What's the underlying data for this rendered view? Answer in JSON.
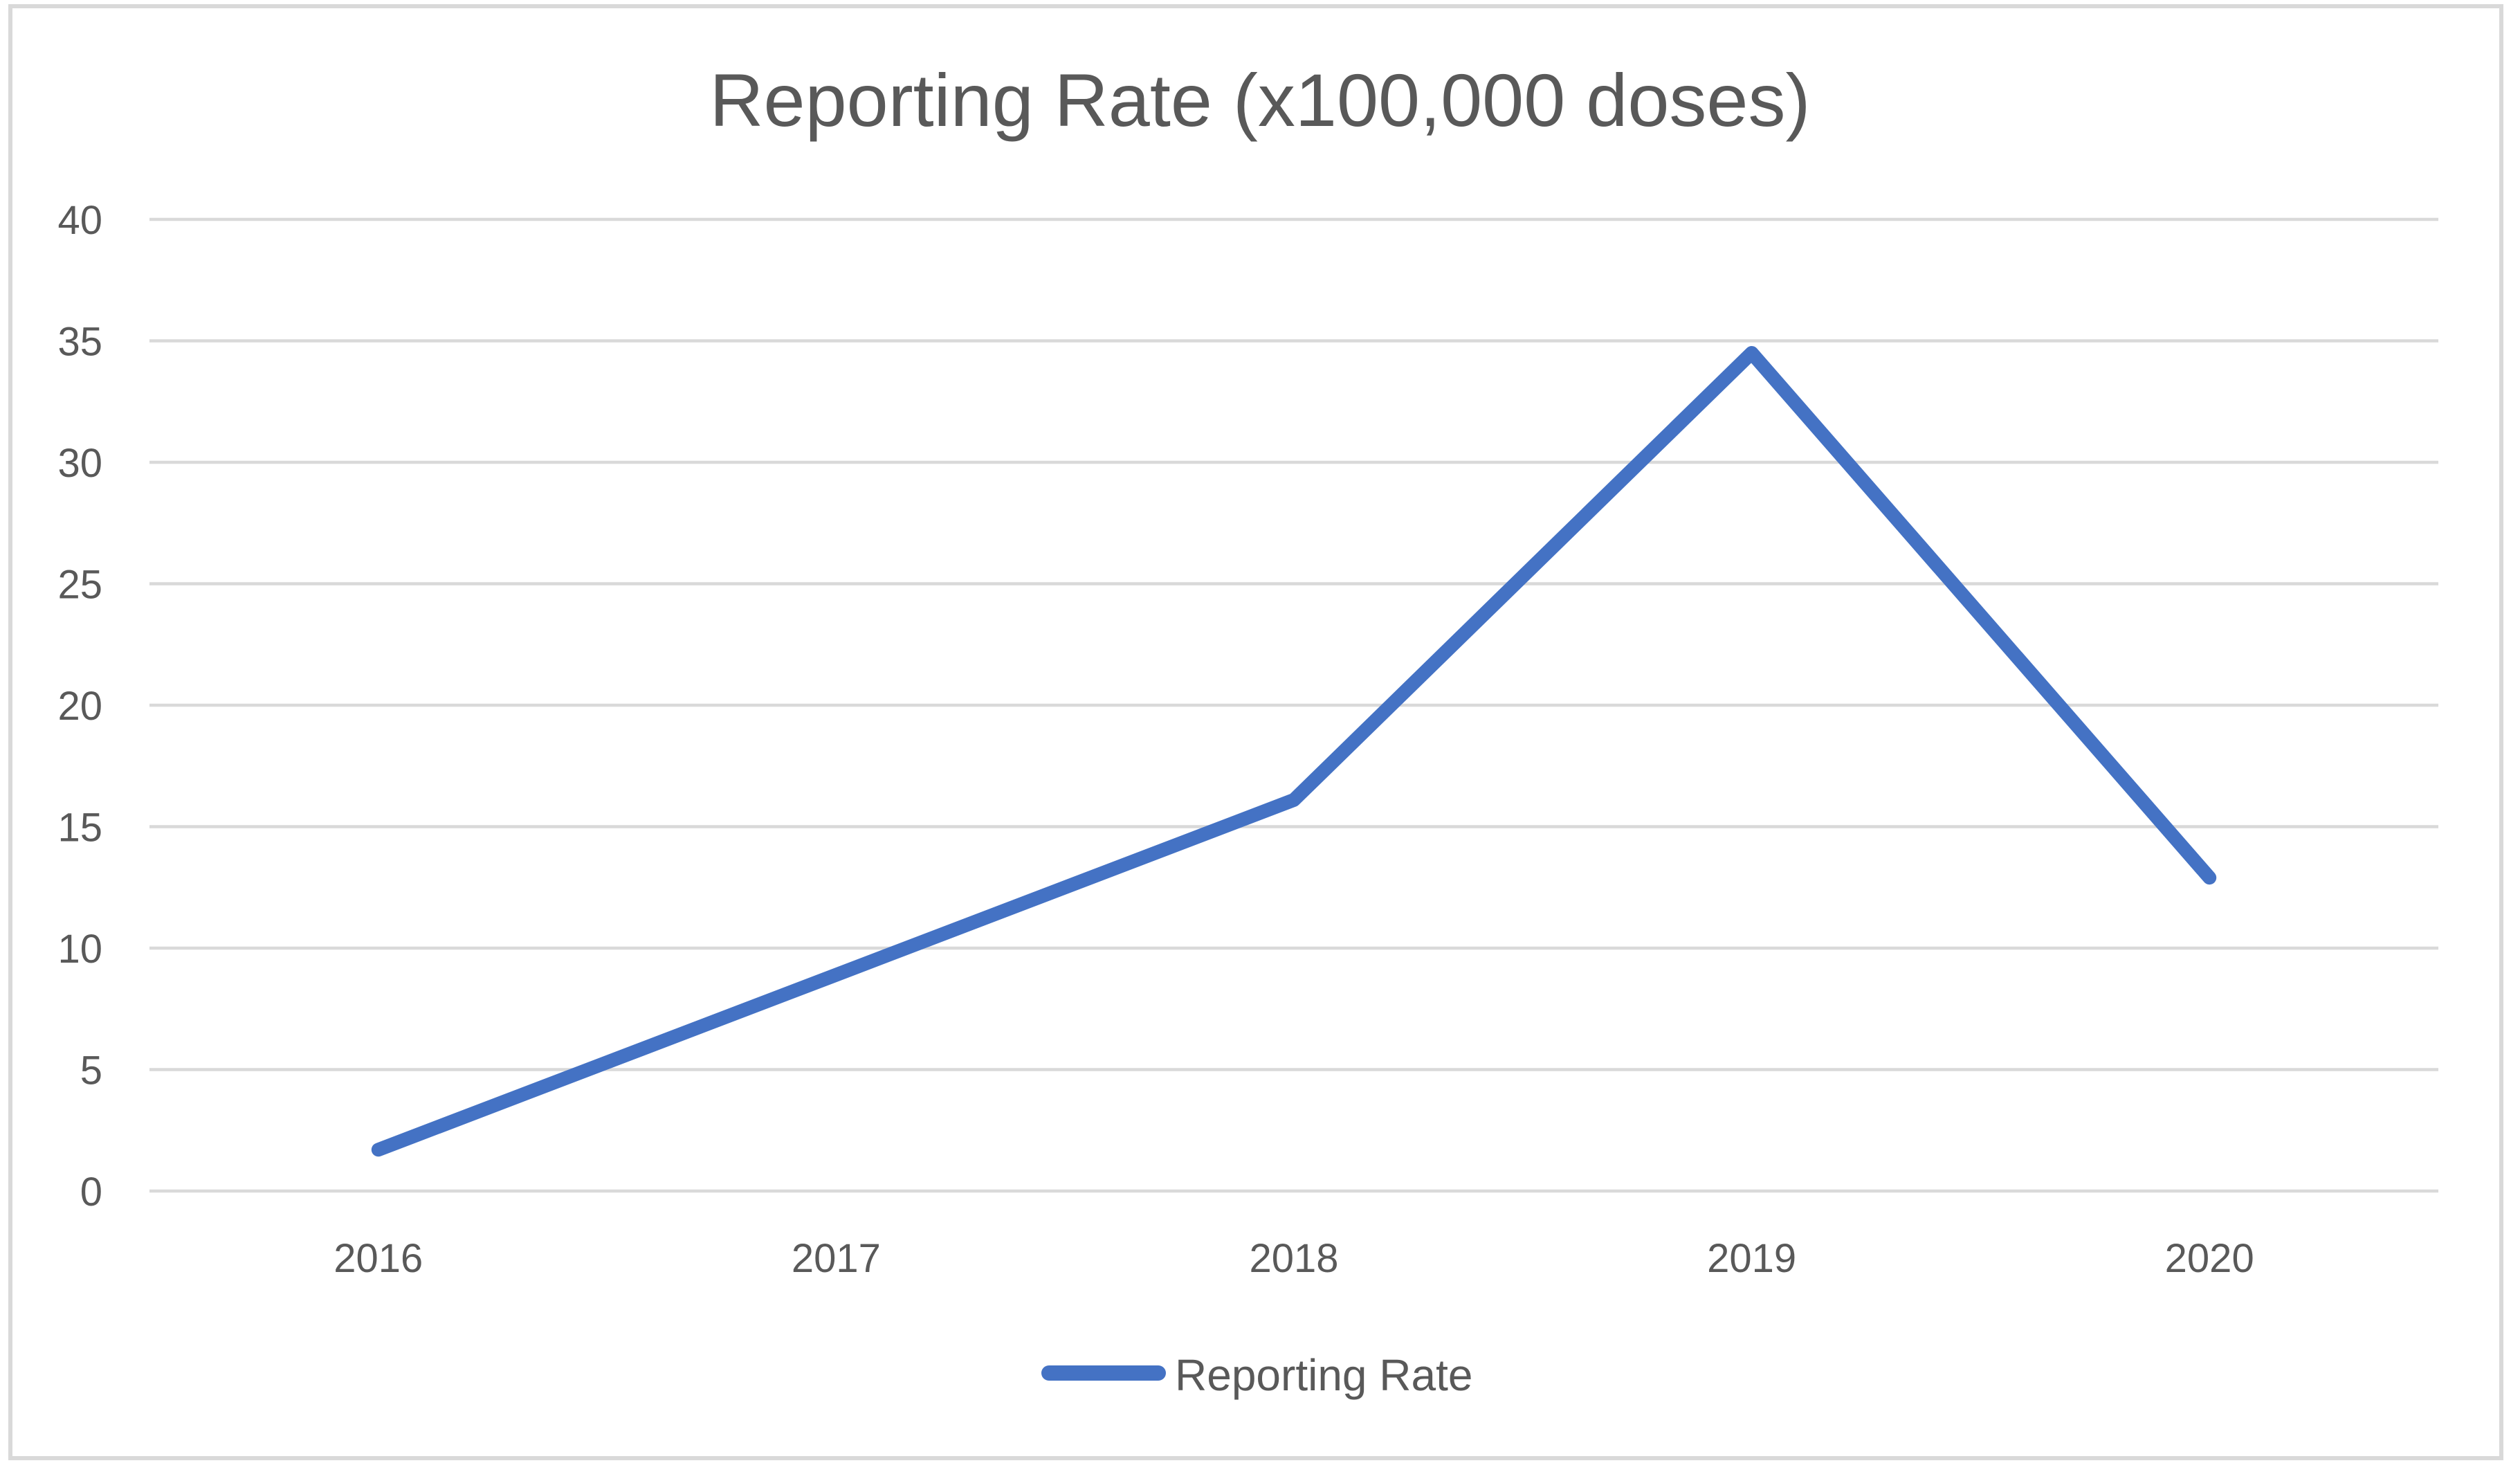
{
  "chart_data": {
    "type": "line",
    "title": "Reporting Rate (x100,000 doses)",
    "categories": [
      "2016",
      "2017",
      "2018",
      "2019",
      "2020"
    ],
    "series": [
      {
        "name": "Reporting Rate",
        "values": [
          1.7,
          8.9,
          16.1,
          34.5,
          12.9
        ]
      }
    ],
    "xlabel": "",
    "ylabel": "",
    "ylim": [
      0,
      40
    ],
    "ytick_step": 5,
    "yticks": [
      "0",
      "5",
      "10",
      "15",
      "20",
      "25",
      "30",
      "35",
      "40"
    ],
    "grid": true,
    "legend_position": "bottom-center",
    "colors": {
      "series_line": "#4472C4",
      "gridline": "#D9D9D9",
      "chart_border": "#D9D9D9",
      "text": "#595959"
    }
  }
}
